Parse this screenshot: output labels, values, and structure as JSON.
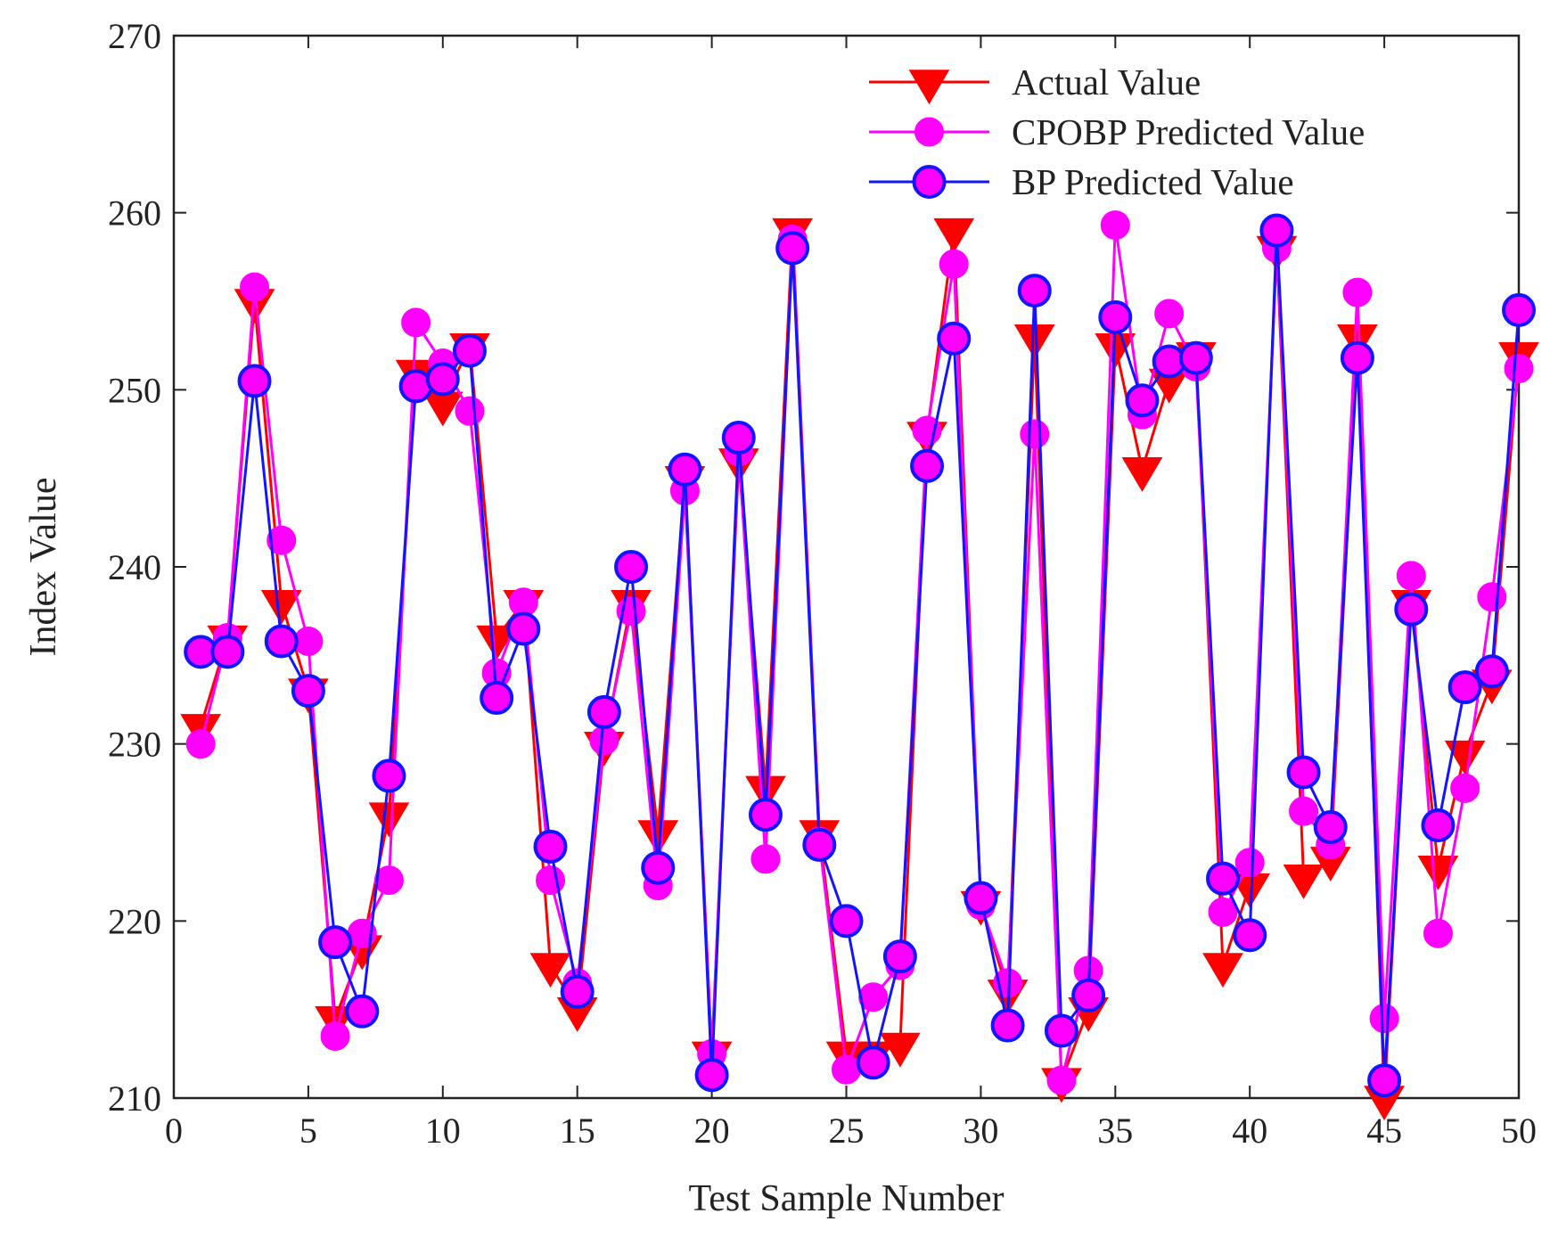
{
  "chart_data": {
    "type": "line",
    "title": "",
    "xlabel": "Test Sample Number",
    "ylabel": "Index Value",
    "xlim": [
      0,
      50
    ],
    "ylim": [
      210,
      270
    ],
    "xticks": [
      0,
      5,
      10,
      15,
      20,
      25,
      30,
      35,
      40,
      45,
      50
    ],
    "yticks": [
      210,
      220,
      230,
      240,
      250,
      260,
      270
    ],
    "grid": false,
    "legend_position": "top-right",
    "x": [
      1,
      2,
      3,
      4,
      5,
      6,
      7,
      8,
      9,
      10,
      11,
      12,
      13,
      14,
      15,
      16,
      17,
      18,
      19,
      20,
      21,
      22,
      23,
      24,
      25,
      26,
      27,
      28,
      29,
      30,
      31,
      32,
      33,
      34,
      35,
      36,
      37,
      38,
      39,
      40,
      41,
      42,
      43,
      44,
      45,
      46,
      47,
      48,
      49,
      50
    ],
    "series": [
      {
        "name": "Actual Value",
        "color": "#ff0000",
        "marker": "triangle-down",
        "values": [
          231,
          236,
          255,
          238,
          233,
          214.5,
          218.5,
          226,
          251,
          249.2,
          252.5,
          236,
          238,
          217.5,
          215,
          230,
          238,
          225,
          245,
          212.5,
          246,
          227.5,
          259,
          225,
          212.5,
          212.5,
          213,
          247.5,
          259,
          221,
          216,
          253,
          211,
          215,
          252.5,
          245.5,
          250.5,
          252,
          217.5,
          222,
          258,
          222.5,
          223.5,
          253,
          210,
          238,
          223,
          229.5,
          233.5,
          252
        ]
      },
      {
        "name": "CPOBP Predicted Value",
        "color": "#ff00ff",
        "marker": "circle",
        "values": [
          230,
          236,
          255.8,
          241.5,
          235.8,
          213.5,
          219.3,
          222.3,
          253.8,
          251.5,
          248.8,
          234,
          238,
          222.3,
          216.5,
          230.2,
          237.5,
          222,
          244.3,
          212.5,
          246.5,
          223.5,
          258.5,
          224.5,
          211.6,
          215.7,
          217.5,
          247.7,
          257.1,
          220.9,
          216.5,
          247.5,
          211,
          217.2,
          259.3,
          248.6,
          254.3,
          251.3,
          220.5,
          223.3,
          258,
          226.2,
          224.3,
          255.5,
          214.5,
          239.5,
          219.3,
          227.5,
          238.3,
          251.2
        ]
      },
      {
        "name": "BP Predicted Value",
        "color": "#1414ff",
        "marker": "circle",
        "values": [
          235.2,
          235.2,
          250.5,
          235.8,
          233,
          218.8,
          214.9,
          228.2,
          250.2,
          250.6,
          252.2,
          232.6,
          236.5,
          224.2,
          216,
          231.8,
          240,
          223,
          245.5,
          211.3,
          247.3,
          226,
          258,
          224.3,
          220,
          212,
          218,
          245.7,
          252.9,
          221.3,
          214.1,
          255.6,
          213.8,
          215.8,
          254.1,
          249.4,
          251.6,
          251.8,
          222.4,
          219.2,
          259,
          228.4,
          225.3,
          251.8,
          211,
          237.6,
          225.4,
          233.2,
          234.1,
          254.5
        ]
      }
    ]
  }
}
